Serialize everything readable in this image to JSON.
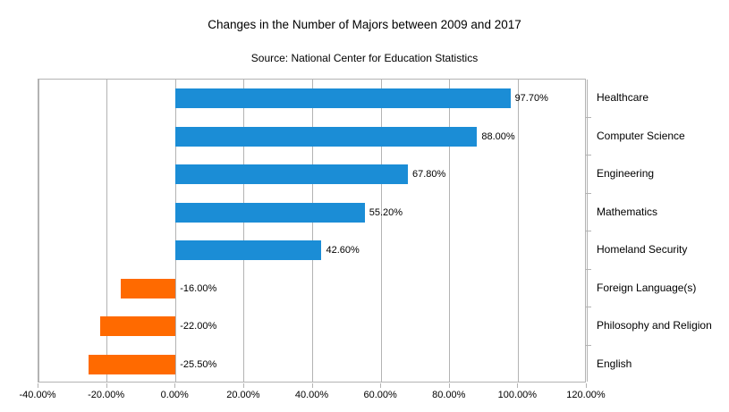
{
  "chart_data": {
    "type": "bar",
    "orientation": "horizontal",
    "title": "Changes in the Number of Majors between 2009 and 2017",
    "subtitle": "Source: National Center for Education Statistics",
    "categories": [
      "Healthcare",
      "Computer Science",
      "Engineering",
      "Mathematics",
      "Homeland Security",
      "Foreign Language(s)",
      "Philosophy and Religion",
      "English"
    ],
    "values": [
      97.7,
      88.0,
      67.8,
      55.2,
      42.6,
      -16.0,
      -22.0,
      -25.5
    ],
    "value_labels": [
      "97.70%",
      "88.00%",
      "67.80%",
      "55.20%",
      "42.60%",
      "-16.00%",
      "-22.00%",
      "-25.50%"
    ],
    "x_ticks": [
      -40,
      -20,
      0,
      20,
      40,
      60,
      80,
      100,
      120
    ],
    "x_tick_labels": [
      "-40.00%",
      "-20.00%",
      "0.00%",
      "20.00%",
      "40.00%",
      "60.00%",
      "80.00%",
      "100.00%",
      "120.00%"
    ],
    "xlim": [
      -40,
      120
    ],
    "grid": "vertical-major",
    "legend": "none",
    "positive_color": "#1B8DD6",
    "negative_color": "#FF6A00",
    "grid_color": "#b3b3b3",
    "axis_color": "#b3b3b3",
    "text_color": "#000000"
  }
}
